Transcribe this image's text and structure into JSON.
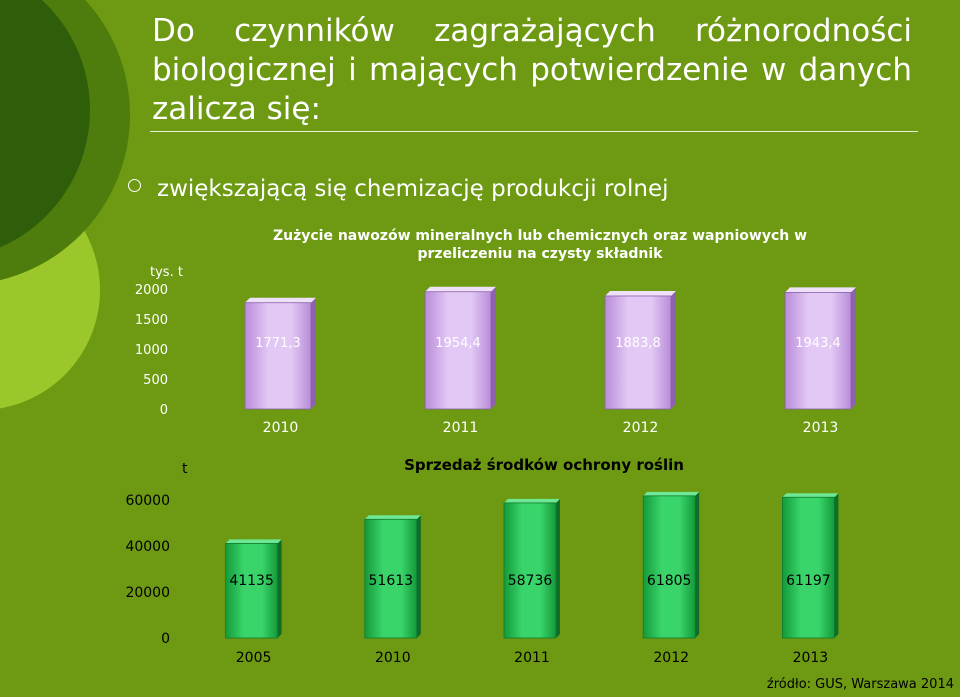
{
  "slide": {
    "title": "Do czynników zagrażających różnorodności biologicznej i mających potwierdzenie w danych zalicza się:",
    "bullet": "zwiększającą się chemizację produkcji rolnej",
    "source": "źródło: GUS, Warszawa 2014"
  },
  "colors": {
    "background": "#6d9a12",
    "fertilizer_bar": "#c9a0e6",
    "pesticide_bar": "#22b24c"
  },
  "chart_data": [
    {
      "type": "bar",
      "title": "Zużycie nawozów mineralnych lub chemicznych oraz wapniowych w przeliczeniu na czysty składnik",
      "unit_label": "tys. t",
      "categories": [
        "2010",
        "2011",
        "2012",
        "2013"
      ],
      "values": [
        1771.3,
        1954.4,
        1883.8,
        1943.4
      ],
      "value_labels": [
        "1771,3",
        "1954,4",
        "1883,8",
        "1943,4"
      ],
      "y_ticks": [
        "0",
        "500",
        "1000",
        "1500",
        "2000"
      ],
      "ylim": [
        0,
        2000
      ],
      "grid": false
    },
    {
      "type": "bar",
      "title": "Sprzedaż środków ochrony roślin",
      "unit_label": "t",
      "categories": [
        "2005",
        "2010",
        "2011",
        "2012",
        "2013"
      ],
      "values": [
        41135,
        51613,
        58736,
        61805,
        61197
      ],
      "value_labels": [
        "41135",
        "51613",
        "58736",
        "61805",
        "61197"
      ],
      "y_ticks": [
        "0",
        "20000",
        "40000",
        "60000"
      ],
      "ylim": [
        0,
        60000
      ],
      "grid": false
    }
  ]
}
